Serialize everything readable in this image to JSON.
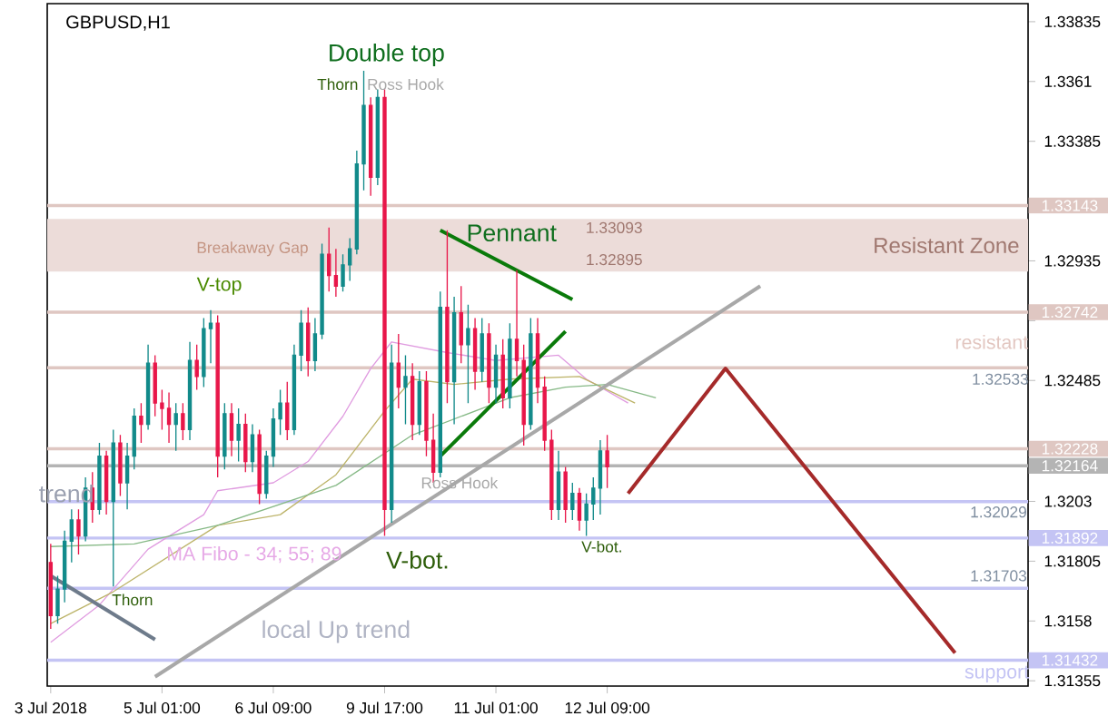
{
  "chart_data": {
    "type": "candlestick",
    "title": "GBPUSD,H1",
    "categories": [
      "3 Jul 2018",
      null,
      null,
      null,
      null,
      null,
      null,
      null,
      null,
      null,
      null,
      null,
      null,
      null,
      null,
      null,
      "5 Jul 01:00",
      null,
      null,
      null,
      null,
      null,
      null,
      null,
      null,
      null,
      null,
      null,
      null,
      null,
      null,
      null,
      "6 Jul 09:00",
      null,
      null,
      null,
      null,
      null,
      null,
      null,
      null,
      null,
      null,
      null,
      null,
      null,
      null,
      null,
      "9 Jul 17:00",
      null,
      null,
      null,
      null,
      null,
      null,
      null,
      null,
      null,
      null,
      null,
      null,
      null,
      null,
      null,
      "11 Jul 01:00",
      null,
      null,
      null,
      null,
      null,
      null,
      null,
      null,
      null,
      null,
      null,
      null,
      null,
      null,
      null,
      "12 Jul 09:00",
      null,
      null,
      null,
      null,
      null,
      null,
      null,
      null,
      null,
      null,
      null,
      null,
      null,
      null,
      null,
      null,
      null,
      null,
      null,
      null,
      null,
      null,
      null,
      null,
      null,
      null,
      null,
      null,
      null,
      null,
      null,
      null,
      null,
      null,
      null,
      null,
      null,
      null,
      null,
      null,
      null,
      null,
      null,
      null,
      null,
      null,
      null,
      null,
      null,
      null,
      null,
      null,
      null,
      null,
      null,
      null,
      null,
      null,
      null,
      null
    ],
    "ohlc": [
      [
        1.318,
        1.3187,
        1.3155,
        1.316
      ],
      [
        1.316,
        1.3175,
        1.3157,
        1.317
      ],
      [
        1.317,
        1.3192,
        1.3165,
        1.3188
      ],
      [
        1.3188,
        1.32,
        1.318,
        1.3196
      ],
      [
        1.3196,
        1.32,
        1.3183,
        1.319
      ],
      [
        1.319,
        1.3212,
        1.3188,
        1.3208
      ],
      [
        1.3208,
        1.3214,
        1.3195,
        1.32
      ],
      [
        1.32,
        1.3225,
        1.3198,
        1.322
      ],
      [
        1.322,
        1.3222,
        1.3198,
        1.3203
      ],
      [
        1.3203,
        1.323,
        1.3171,
        1.3225
      ],
      [
        1.3225,
        1.3228,
        1.3205,
        1.321
      ],
      [
        1.321,
        1.3225,
        1.32,
        1.322
      ],
      [
        1.322,
        1.3238,
        1.3215,
        1.3235
      ],
      [
        1.3235,
        1.324,
        1.3225,
        1.3232
      ],
      [
        1.3232,
        1.3262,
        1.323,
        1.3255
      ],
      [
        1.3255,
        1.3258,
        1.3235,
        1.324
      ],
      [
        1.324,
        1.3245,
        1.323,
        1.3238
      ],
      [
        1.3238,
        1.3244,
        1.3225,
        1.3232
      ],
      [
        1.3232,
        1.324,
        1.3222,
        1.3236
      ],
      [
        1.3236,
        1.324,
        1.3226,
        1.323
      ],
      [
        1.323,
        1.3263,
        1.3226,
        1.3256
      ],
      [
        1.3256,
        1.3262,
        1.3245,
        1.325
      ],
      [
        1.325,
        1.3272,
        1.3246,
        1.3268
      ],
      [
        1.3268,
        1.3275,
        1.3255,
        1.327
      ],
      [
        1.327,
        1.3273,
        1.3212,
        1.322
      ],
      [
        1.322,
        1.324,
        1.3215,
        1.3236
      ],
      [
        1.3236,
        1.324,
        1.322,
        1.3226
      ],
      [
        1.3226,
        1.3238,
        1.3218,
        1.3232
      ],
      [
        1.3232,
        1.3236,
        1.3214,
        1.3218
      ],
      [
        1.3218,
        1.3232,
        1.3214,
        1.3228
      ],
      [
        1.3228,
        1.323,
        1.3202,
        1.3206
      ],
      [
        1.3206,
        1.3222,
        1.3204,
        1.322
      ],
      [
        1.322,
        1.3238,
        1.3216,
        1.3234
      ],
      [
        1.3234,
        1.3245,
        1.3228,
        1.324
      ],
      [
        1.324,
        1.3248,
        1.3226,
        1.323
      ],
      [
        1.323,
        1.3262,
        1.3228,
        1.3258
      ],
      [
        1.3258,
        1.3275,
        1.3252,
        1.327
      ],
      [
        1.327,
        1.3276,
        1.325,
        1.3256
      ],
      [
        1.3256,
        1.3272,
        1.3252,
        1.3266
      ],
      [
        1.3266,
        1.33,
        1.3264,
        1.3296
      ],
      [
        1.3296,
        1.3306,
        1.3282,
        1.3288
      ],
      [
        1.3288,
        1.3298,
        1.328,
        1.3284
      ],
      [
        1.3284,
        1.3296,
        1.3282,
        1.3292
      ],
      [
        1.3292,
        1.3302,
        1.3286,
        1.3298
      ],
      [
        1.3298,
        1.3335,
        1.3296,
        1.333
      ],
      [
        1.333,
        1.3365,
        1.332,
        1.3352
      ],
      [
        1.3352,
        1.3355,
        1.3318,
        1.3325
      ],
      [
        1.3325,
        1.3358,
        1.3322,
        1.3355
      ],
      [
        1.3355,
        1.3358,
        1.319,
        1.32
      ],
      [
        1.32,
        1.3262,
        1.3195,
        1.3255
      ],
      [
        1.3255,
        1.3266,
        1.3238,
        1.3246
      ],
      [
        1.3246,
        1.3258,
        1.3232,
        1.325
      ],
      [
        1.325,
        1.3255,
        1.3226,
        1.3232
      ],
      [
        1.3232,
        1.3252,
        1.3228,
        1.3248
      ],
      [
        1.3248,
        1.3252,
        1.322,
        1.3226
      ],
      [
        1.3226,
        1.3236,
        1.321,
        1.3214
      ],
      [
        1.3214,
        1.3282,
        1.3212,
        1.3276
      ],
      [
        1.3276,
        1.3305,
        1.324,
        1.3248
      ],
      [
        1.3248,
        1.328,
        1.3232,
        1.3274
      ],
      [
        1.3274,
        1.3284,
        1.3255,
        1.3262
      ],
      [
        1.3262,
        1.3277,
        1.324,
        1.3268
      ],
      [
        1.3268,
        1.3272,
        1.3245,
        1.3252
      ],
      [
        1.3252,
        1.3272,
        1.3248,
        1.3266
      ],
      [
        1.3266,
        1.327,
        1.324,
        1.3246
      ],
      [
        1.3246,
        1.3262,
        1.324,
        1.3258
      ],
      [
        1.3258,
        1.3264,
        1.3238,
        1.3242
      ],
      [
        1.3242,
        1.327,
        1.3238,
        1.3264
      ],
      [
        1.3264,
        1.329,
        1.325,
        1.3256
      ],
      [
        1.3256,
        1.3262,
        1.3224,
        1.3232
      ],
      [
        1.3232,
        1.3272,
        1.323,
        1.3266
      ],
      [
        1.3266,
        1.3272,
        1.324,
        1.3246
      ],
      [
        1.3246,
        1.325,
        1.3222,
        1.3226
      ],
      [
        1.3226,
        1.323,
        1.3196,
        1.32
      ],
      [
        1.32,
        1.3222,
        1.3196,
        1.3214
      ],
      [
        1.3214,
        1.3216,
        1.3195,
        1.32
      ],
      [
        1.32,
        1.321,
        1.3196,
        1.3206
      ],
      [
        1.3206,
        1.3208,
        1.3192,
        1.3196
      ],
      [
        1.3196,
        1.3206,
        1.319,
        1.3202
      ],
      [
        1.3202,
        1.3212,
        1.3196,
        1.3208
      ],
      [
        1.3208,
        1.3226,
        1.3198,
        1.3222
      ],
      [
        1.3222,
        1.3228,
        1.3208,
        1.3216
      ],
      null,
      null,
      null,
      null,
      null,
      null,
      null,
      null,
      null,
      null,
      null,
      null,
      null,
      null,
      null,
      null,
      null,
      null,
      null,
      null,
      null,
      null,
      null,
      null,
      null,
      null,
      null,
      null,
      null,
      null,
      null,
      null,
      null,
      null,
      null,
      null,
      null,
      null,
      null,
      null,
      null,
      null,
      null,
      null,
      null,
      null,
      null,
      null,
      null,
      null,
      null,
      null,
      null,
      null,
      null,
      null,
      null,
      null,
      null,
      null
    ],
    "colors": [
      "#e8174a",
      "#128a8a",
      "#128a8a",
      "#128a8a",
      "#e8174a",
      "#128a8a",
      "#e8174a",
      "#128a8a",
      "#e8174a",
      "#128a8a",
      "#e8174a",
      "#128a8a",
      "#128a8a",
      "#e8174a",
      "#128a8a",
      "#e8174a",
      "#e8174a",
      "#e8174a",
      "#128a8a",
      "#e8174a",
      "#128a8a",
      "#e8174a",
      "#128a8a",
      "#128a8a",
      "#e8174a",
      "#128a8a",
      "#e8174a",
      "#128a8a",
      "#e8174a",
      "#128a8a",
      "#e8174a",
      "#128a8a",
      "#128a8a",
      "#128a8a",
      "#e8174a",
      "#128a8a",
      "#128a8a",
      "#e8174a",
      "#128a8a",
      "#128a8a",
      "#e8174a",
      "#e8174a",
      "#128a8a",
      "#128a8a",
      "#128a8a",
      "#128a8a",
      "#e8174a",
      "#128a8a",
      "#e8174a",
      "#128a8a",
      "#e8174a",
      "#128a8a",
      "#e8174a",
      "#128a8a",
      "#e8174a",
      "#e8174a",
      "#128a8a",
      "#e8174a",
      "#128a8a",
      "#e8174a",
      "#128a8a",
      "#e8174a",
      "#128a8a",
      "#e8174a",
      "#128a8a",
      "#e8174a",
      "#128a8a",
      "#e8174a",
      "#e8174a",
      "#128a8a",
      "#e8174a",
      "#e8174a",
      "#e8174a",
      "#128a8a",
      "#e8174a",
      "#128a8a",
      "#e8174a",
      "#128a8a",
      "#128a8a",
      "#128a8a",
      "#e8174a",
      null,
      null,
      null,
      null,
      null,
      null,
      null,
      null,
      null,
      null,
      null,
      null,
      null,
      null,
      null,
      null,
      null,
      null,
      null,
      null,
      null,
      null,
      null,
      null,
      null,
      null,
      null,
      null,
      null,
      null,
      null,
      null,
      null,
      null,
      null,
      null,
      null,
      null,
      null,
      null,
      null,
      null,
      null,
      null,
      null,
      null,
      null,
      null,
      null,
      null,
      null,
      null,
      null,
      null,
      null,
      null,
      null,
      null,
      null,
      null
    ],
    "series": [
      {
        "type": "line",
        "color": "#e09ce0",
        "values": [
          1.315,
          null,
          null,
          null,
          null,
          null,
          null,
          1.3164,
          null,
          null,
          null,
          null,
          null,
          null,
          1.3185,
          null,
          null,
          null,
          null,
          null,
          null,
          null,
          1.3198,
          null,
          1.3207,
          null,
          null,
          null,
          null,
          null,
          null,
          null,
          1.321,
          null,
          null,
          null,
          null,
          1.3218,
          null,
          null,
          null,
          null,
          1.3235,
          null,
          null,
          null,
          1.3253,
          null,
          null,
          1.3263,
          null,
          null,
          null,
          null,
          null,
          null,
          null,
          1.3259,
          null,
          null,
          null,
          null,
          null,
          null,
          1.3256,
          null,
          null,
          null,
          null,
          null,
          null,
          null,
          null,
          1.3258,
          null,
          null,
          null,
          1.3249,
          null,
          null,
          null,
          null,
          null,
          1.324,
          null,
          null,
          null,
          null,
          null,
          null,
          null,
          null,
          null,
          null,
          null,
          null,
          null,
          null,
          null,
          null,
          null,
          null,
          null,
          null,
          null,
          null,
          null,
          null,
          null,
          null,
          null,
          null,
          null,
          null,
          null,
          null,
          null,
          null,
          null,
          null,
          null,
          null,
          null,
          null,
          null,
          null,
          null,
          null,
          null,
          null,
          null,
          null,
          null,
          null,
          null,
          null,
          null,
          null,
          null,
          null,
          null
        ]
      },
      {
        "type": "line",
        "color": "#bdb46a",
        "values": [
          1.3157,
          null,
          null,
          null,
          null,
          null,
          null,
          null,
          null,
          1.3169,
          null,
          null,
          null,
          null,
          null,
          null,
          null,
          null,
          null,
          null,
          null,
          null,
          null,
          null,
          1.3194,
          null,
          null,
          null,
          null,
          null,
          null,
          null,
          null,
          1.3198,
          null,
          null,
          null,
          null,
          null,
          null,
          null,
          1.3213,
          null,
          null,
          null,
          null,
          null,
          null,
          1.3237,
          null,
          null,
          null,
          1.3249,
          null,
          null,
          null,
          null,
          null,
          1.3247,
          null,
          null,
          null,
          null,
          null,
          null,
          null,
          1.3249,
          null,
          null,
          null,
          null,
          null,
          null,
          null,
          null,
          null,
          1.325,
          null,
          null,
          null,
          null,
          null,
          null,
          null,
          1.324,
          null,
          null,
          null,
          null,
          null,
          null,
          null,
          null,
          null,
          null,
          null,
          null,
          null,
          null,
          null,
          null,
          null,
          null,
          null,
          null,
          null,
          null,
          null,
          null,
          null,
          null,
          null,
          null,
          null,
          null,
          null,
          null,
          null,
          null,
          null,
          null,
          null,
          null,
          null,
          null,
          null,
          null,
          null,
          null,
          null,
          null,
          null,
          null,
          null,
          null,
          null,
          null,
          null,
          null,
          null,
          null
        ]
      },
      {
        "type": "line",
        "color": "#86b986",
        "values": [
          1.3186,
          null,
          null,
          null,
          null,
          null,
          null,
          null,
          null,
          null,
          null,
          null,
          1.3187,
          null,
          null,
          null,
          null,
          null,
          null,
          null,
          null,
          null,
          null,
          null,
          1.3194,
          null,
          null,
          null,
          null,
          null,
          null,
          null,
          null,
          null,
          null,
          null,
          null,
          null,
          null,
          null,
          null,
          1.3209,
          null,
          null,
          null,
          null,
          null,
          null,
          null,
          null,
          null,
          null,
          1.3228,
          null,
          null,
          null,
          null,
          null,
          null,
          null,
          null,
          null,
          null,
          null,
          null,
          null,
          1.3242,
          null,
          null,
          null,
          null,
          null,
          null,
          null,
          1.3246,
          null,
          null,
          null,
          null,
          null,
          1.3247,
          null,
          null,
          null,
          null,
          null,
          null,
          1.3242,
          null,
          null,
          null,
          null,
          null,
          null,
          null,
          null,
          null,
          null,
          null,
          null,
          null,
          null,
          null,
          null,
          null,
          null,
          null,
          null,
          null,
          null,
          null,
          null,
          null,
          null,
          null,
          null,
          null,
          null,
          null,
          null,
          null,
          null,
          null,
          null,
          null,
          null,
          null,
          null,
          null,
          null,
          null,
          null,
          null,
          null,
          null,
          null,
          null,
          null,
          null,
          null,
          null
        ]
      },
      {
        "type": "line",
        "color": "#6e7b8b",
        "values": [
          1.3175,
          null,
          null,
          null,
          null,
          null,
          null,
          null,
          null,
          null,
          null,
          null,
          null,
          null,
          null,
          1.3151,
          null,
          null,
          null,
          null,
          null,
          null,
          null,
          null,
          null,
          null,
          null,
          null,
          null,
          null,
          null,
          null,
          null,
          null,
          null,
          null,
          null,
          null,
          null,
          null,
          null,
          null,
          null,
          null,
          null,
          null,
          null,
          null,
          null,
          null,
          null,
          null,
          null,
          null,
          null,
          null,
          null,
          null,
          null,
          null,
          null,
          null,
          null,
          null,
          null,
          null,
          null,
          null,
          null,
          null,
          null,
          null,
          null,
          null,
          null,
          null,
          null,
          null,
          null,
          null,
          null,
          null,
          null,
          null,
          null,
          null,
          null,
          null,
          null,
          null,
          null,
          null,
          null,
          null,
          null,
          null,
          null,
          null,
          null,
          null,
          null,
          null,
          null,
          null,
          null,
          null,
          null,
          null,
          null,
          null,
          null,
          null,
          null,
          null,
          null,
          null,
          null,
          null,
          null,
          null,
          null,
          null,
          null,
          null,
          null,
          null,
          null,
          null,
          null,
          null,
          null,
          null,
          null,
          null,
          null,
          null,
          null,
          null,
          null,
          null,
          null
        ]
      },
      {
        "type": "line",
        "color": "#a8a8a8",
        "values": [
          null,
          null,
          null,
          null,
          null,
          null,
          null,
          null,
          null,
          null,
          null,
          null,
          null,
          null,
          null,
          1.3137,
          null,
          null,
          null,
          null,
          null,
          null,
          null,
          null,
          null,
          null,
          null,
          null,
          null,
          null,
          null,
          null,
          null,
          null,
          null,
          null,
          null,
          null,
          null,
          null,
          null,
          null,
          null,
          null,
          null,
          null,
          null,
          null,
          null,
          null,
          null,
          null,
          null,
          null,
          null,
          null,
          null,
          null,
          null,
          null,
          null,
          null,
          null,
          null,
          null,
          null,
          null,
          null,
          null,
          null,
          null,
          null,
          null,
          null,
          null,
          null,
          null,
          null,
          null,
          null,
          null,
          null,
          null,
          null,
          null,
          null,
          null,
          null,
          null,
          null,
          null,
          null,
          null,
          null,
          null,
          null,
          null,
          null,
          null,
          null,
          null,
          null,
          1.3284,
          null,
          null,
          null,
          null,
          null,
          null,
          null,
          null,
          null,
          null,
          null,
          null,
          null,
          null,
          null,
          null,
          null,
          null,
          null,
          null,
          null,
          null,
          null,
          null,
          null,
          null,
          null,
          null,
          null,
          null,
          null,
          null,
          null,
          null,
          null,
          null,
          null,
          null
        ]
      },
      {
        "type": "line",
        "color": "#0a7a0a",
        "values": [
          null,
          null,
          null,
          null,
          null,
          null,
          null,
          null,
          null,
          null,
          null,
          null,
          null,
          null,
          null,
          null,
          null,
          null,
          null,
          null,
          null,
          null,
          null,
          null,
          null,
          null,
          null,
          null,
          null,
          null,
          null,
          null,
          null,
          null,
          null,
          null,
          null,
          null,
          null,
          null,
          null,
          null,
          null,
          null,
          null,
          null,
          null,
          null,
          null,
          null,
          null,
          null,
          null,
          null,
          null,
          null,
          1.3305,
          null,
          null,
          null,
          null,
          null,
          null,
          null,
          null,
          null,
          null,
          null,
          null,
          null,
          null,
          null,
          null,
          null,
          null,
          1.3279,
          null,
          null,
          null,
          null,
          null,
          null,
          null,
          null,
          null,
          null,
          null,
          null,
          null,
          null,
          null,
          null,
          null,
          null,
          null,
          null,
          null,
          null,
          null,
          null,
          null,
          null,
          null,
          null,
          null,
          null,
          null,
          null,
          null,
          null,
          null,
          null,
          null,
          null,
          null,
          null,
          null,
          null,
          null,
          null,
          null,
          null,
          null,
          null,
          null,
          null,
          null,
          null,
          null,
          null,
          null,
          null,
          null,
          null,
          null,
          null,
          null,
          null,
          null,
          null,
          null
        ]
      },
      {
        "type": "line",
        "color": "#0a7a0a",
        "values": [
          null,
          null,
          null,
          null,
          null,
          null,
          null,
          null,
          null,
          null,
          null,
          null,
          null,
          null,
          null,
          null,
          null,
          null,
          null,
          null,
          null,
          null,
          null,
          null,
          null,
          null,
          null,
          null,
          null,
          null,
          null,
          null,
          null,
          null,
          null,
          null,
          null,
          null,
          null,
          null,
          null,
          null,
          null,
          null,
          null,
          null,
          null,
          null,
          null,
          null,
          null,
          null,
          null,
          null,
          null,
          null,
          1.322,
          null,
          null,
          null,
          null,
          null,
          null,
          null,
          null,
          null,
          null,
          null,
          null,
          null,
          null,
          null,
          null,
          null,
          1.3267,
          null,
          null,
          null,
          null,
          null,
          null,
          null,
          null,
          null,
          null,
          null,
          null,
          null,
          null,
          null,
          null,
          null,
          null,
          null,
          null,
          null,
          null,
          null,
          null,
          null,
          null,
          null,
          null,
          null,
          null,
          null,
          null,
          null,
          null,
          null,
          null,
          null,
          null,
          null,
          null,
          null,
          null,
          null,
          null,
          null,
          null,
          null,
          null,
          null,
          null,
          null,
          null,
          null,
          null,
          null,
          null,
          null,
          null,
          null,
          null,
          null,
          null,
          null,
          null,
          null,
          null
        ]
      },
      {
        "type": "line",
        "color": "#a52a2a",
        "values": [
          null,
          null,
          null,
          null,
          null,
          null,
          null,
          null,
          null,
          null,
          null,
          null,
          null,
          null,
          null,
          null,
          null,
          null,
          null,
          null,
          null,
          null,
          null,
          null,
          null,
          null,
          null,
          null,
          null,
          null,
          null,
          null,
          null,
          null,
          null,
          null,
          null,
          null,
          null,
          null,
          null,
          null,
          null,
          null,
          null,
          null,
          null,
          null,
          null,
          null,
          null,
          null,
          null,
          null,
          null,
          null,
          null,
          null,
          null,
          null,
          null,
          null,
          null,
          null,
          null,
          null,
          null,
          null,
          null,
          null,
          null,
          null,
          null,
          null,
          null,
          null,
          null,
          null,
          null,
          null,
          null,
          null,
          null,
          1.3206,
          null,
          null,
          null,
          null,
          null,
          null,
          null,
          null,
          null,
          null,
          null,
          null,
          null,
          1.3253,
          null,
          null,
          null,
          null,
          null,
          null,
          null,
          null,
          null,
          null,
          null,
          null,
          null,
          null,
          null,
          null,
          null,
          null,
          null,
          null,
          null,
          null,
          null,
          null,
          null,
          null,
          null,
          null,
          null,
          null,
          null,
          null,
          1.3146,
          null,
          null,
          null,
          null,
          null,
          null,
          null,
          null,
          null,
          null
        ]
      }
    ],
    "ylim": [
      1.31335,
      1.33903
    ],
    "yticks": [
      1.31355,
      1.3158,
      1.31805,
      1.3203,
      1.32485,
      {
        "value": 1.3271,
        "label": null
      },
      1.32935,
      1.33385,
      1.3361,
      1.33835
    ],
    "bands": [
      {
        "axis": "y",
        "from": 1.32895,
        "to": 1.33093,
        "label": "Resistant Zone",
        "color": "#ecdcd9"
      }
    ],
    "ref_lines": [
      {
        "axis": "y",
        "value": 1.33143,
        "label": "1.33143",
        "color": "#dfc7c2"
      },
      {
        "axis": "y",
        "value": 1.32742,
        "label": "1.32742",
        "color": "#dfc7c2"
      },
      {
        "axis": "y",
        "value": 1.32533,
        "color": "#dfc7c2"
      },
      {
        "axis": "y",
        "value": 1.32228,
        "label": "1.32228",
        "color": "#dfc7c2"
      },
      {
        "axis": "y",
        "value": 1.32164,
        "label": "1.32164",
        "color": "#b4b4b4"
      },
      {
        "axis": "y",
        "value": 1.32029,
        "color": "#c4c4f4"
      },
      {
        "axis": "y",
        "value": 1.31892,
        "label": "1.31892",
        "color": "#c4c4f4"
      },
      {
        "axis": "y",
        "value": 1.31703,
        "color": "#c4c4f4"
      },
      {
        "axis": "y",
        "value": 1.31432,
        "label": "1.31432",
        "color": "#c4c4f4"
      }
    ],
    "annotations": [
      "Double top",
      "Thorn",
      "Ross Hook",
      "Breakaway Gap",
      "V-top",
      "Pennant",
      "1.33093",
      "1.32895",
      "resistant",
      "1.32533",
      "Ross Hook",
      "V-bot.",
      "1.32029",
      "V-bot.",
      "MA Fibo - 34; 55; 89",
      "1.31703",
      "Thorn",
      "trend",
      "local  Up trend",
      "support"
    ]
  }
}
